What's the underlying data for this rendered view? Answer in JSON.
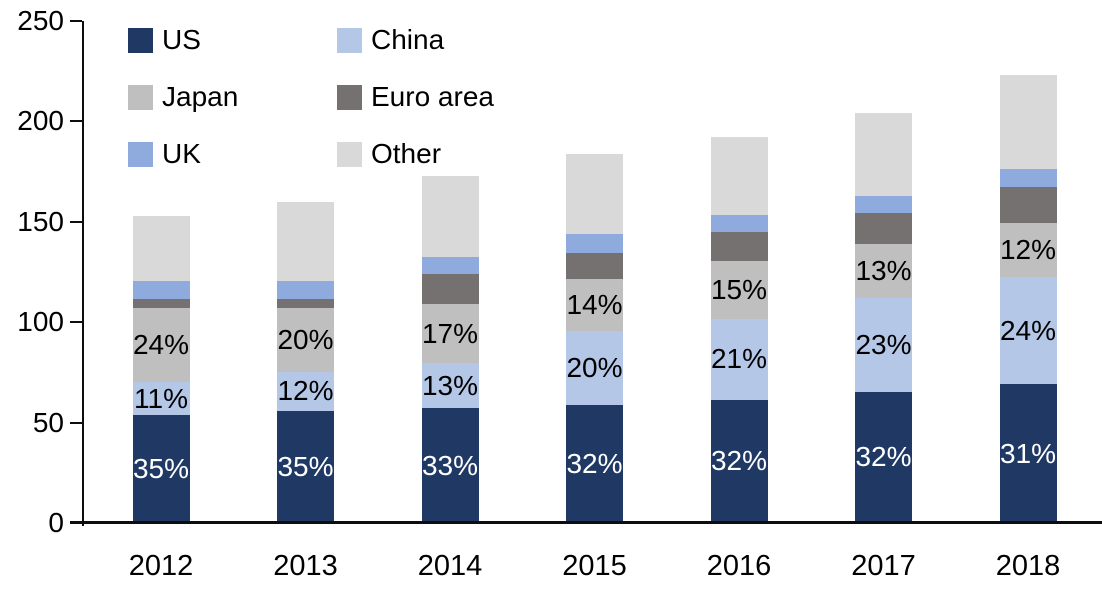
{
  "chart_data": {
    "type": "bar",
    "stacked": true,
    "title": "",
    "categories": [
      "2012",
      "2013",
      "2014",
      "2015",
      "2016",
      "2017",
      "2018"
    ],
    "y_axis": {
      "min": 0,
      "max": 250,
      "ticks": [
        0,
        50,
        100,
        150,
        200,
        250
      ]
    },
    "grid": false,
    "legend_position": "top-left",
    "totals": [
      153,
      160,
      173,
      184,
      192,
      204,
      223
    ],
    "series": [
      {
        "name": "US",
        "color": "#1F3864",
        "values": [
          53.6,
          56.0,
          57.1,
          58.9,
          61.4,
          65.3,
          69.1
        ],
        "labels": [
          "35%",
          "35%",
          "33%",
          "32%",
          "32%",
          "32%",
          "31%"
        ],
        "label_color": "#FFFFFF"
      },
      {
        "name": "China",
        "color": "#B4C7E7",
        "values": [
          16.8,
          19.2,
          22.5,
          36.8,
          40.3,
          46.9,
          53.5
        ],
        "labels": [
          "11%",
          "12%",
          "13%",
          "20%",
          "21%",
          "23%",
          "24%"
        ],
        "label_color": "#000000"
      },
      {
        "name": "Japan",
        "color": "#BFBFBF",
        "values": [
          36.7,
          32.0,
          29.4,
          25.8,
          28.8,
          26.5,
          26.8
        ],
        "labels": [
          "24%",
          "20%",
          "17%",
          "14%",
          "15%",
          "13%",
          "12%"
        ],
        "label_color": "#000000"
      },
      {
        "name": "Euro area",
        "color": "#757171",
        "values": [
          4.5,
          4.5,
          15.0,
          13.0,
          14.4,
          15.5,
          18.0
        ],
        "labels": null,
        "label_color": "#000000"
      },
      {
        "name": "UK",
        "color": "#8FAADC",
        "values": [
          9.0,
          9.0,
          8.5,
          9.5,
          8.5,
          8.4,
          9.0
        ],
        "labels": null,
        "label_color": "#000000"
      },
      {
        "name": "Other",
        "color": "#D9D9D9",
        "values": [
          32.4,
          39.3,
          40.5,
          40.0,
          38.6,
          41.4,
          46.6
        ],
        "labels": null,
        "label_color": "#000000"
      }
    ],
    "legend_rows": [
      [
        "US",
        "China"
      ],
      [
        "Japan",
        "Euro area"
      ],
      [
        "UK",
        "Other"
      ]
    ]
  }
}
